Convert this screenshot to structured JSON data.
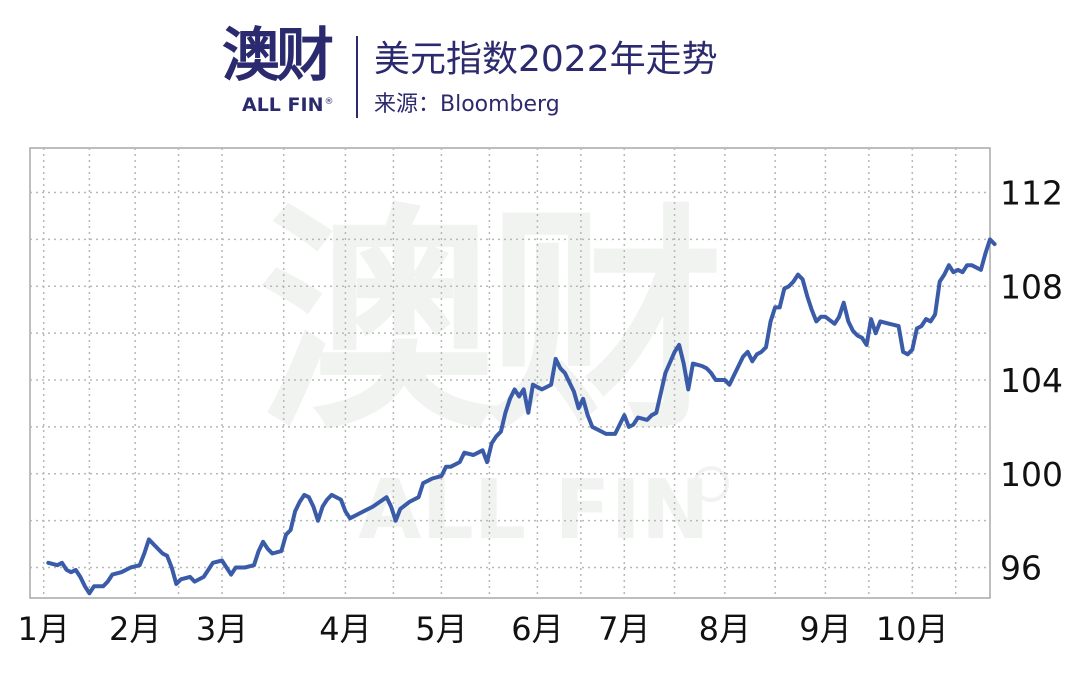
{
  "header": {
    "logo_cn": "澳财",
    "logo_en": "ALL FIN",
    "logo_reg": "®",
    "title": "美元指数2022年走势",
    "source": "来源：Bloomberg"
  },
  "watermark": {
    "cn": "澳财",
    "en": "ALL FIN"
  },
  "colors": {
    "line": "#3a5ba8",
    "brand": "#2b2a6e",
    "grid": "#b8b8b8"
  },
  "chart_data": {
    "type": "line",
    "title": "美元指数2022年走势",
    "xlabel": "",
    "ylabel": "",
    "grid": true,
    "y_axis_side": "right",
    "ylim": [
      94.7,
      113.9
    ],
    "yticks": [
      96,
      100,
      104,
      108,
      112
    ],
    "xticks": [
      {
        "label": "1月",
        "x": 1
      },
      {
        "label": "2月",
        "x": 21
      },
      {
        "label": "3月",
        "x": 40
      },
      {
        "label": "4月",
        "x": 67
      },
      {
        "label": "5月",
        "x": 88
      },
      {
        "label": "6月",
        "x": 109
      },
      {
        "label": "7月",
        "x": 128
      },
      {
        "label": "8月",
        "x": 150
      },
      {
        "label": "9月",
        "x": 172
      },
      {
        "label": "10月",
        "x": 191
      }
    ],
    "xlim": [
      -2,
      208
    ],
    "series": [
      {
        "values": [
          [
            2,
            96.2
          ],
          [
            4,
            96.1
          ],
          [
            5,
            96.2
          ],
          [
            6,
            95.9
          ],
          [
            7,
            95.8
          ],
          [
            8,
            95.9
          ],
          [
            9,
            95.6
          ],
          [
            10,
            95.2
          ],
          [
            11,
            94.9
          ],
          [
            12,
            95.2
          ],
          [
            14,
            95.2
          ],
          [
            15,
            95.4
          ],
          [
            16,
            95.7
          ],
          [
            18,
            95.8
          ],
          [
            20,
            96.0
          ],
          [
            22,
            96.1
          ],
          [
            23,
            96.6
          ],
          [
            24,
            97.2
          ],
          [
            25,
            97.0
          ],
          [
            27,
            96.6
          ],
          [
            28,
            96.5
          ],
          [
            29,
            96.0
          ],
          [
            30,
            95.3
          ],
          [
            31,
            95.5
          ],
          [
            33,
            95.6
          ],
          [
            34,
            95.4
          ],
          [
            36,
            95.6
          ],
          [
            38,
            96.2
          ],
          [
            40,
            96.3
          ],
          [
            42,
            95.7
          ],
          [
            43,
            96.0
          ],
          [
            45,
            96.0
          ],
          [
            47,
            96.1
          ],
          [
            48,
            96.7
          ],
          [
            49,
            97.1
          ],
          [
            50,
            96.8
          ],
          [
            51,
            96.6
          ],
          [
            53,
            96.7
          ],
          [
            54,
            97.4
          ],
          [
            55,
            97.6
          ],
          [
            56,
            98.4
          ],
          [
            57,
            98.8
          ],
          [
            58,
            99.1
          ],
          [
            59,
            99.0
          ],
          [
            60,
            98.6
          ],
          [
            61,
            98.0
          ],
          [
            62,
            98.6
          ],
          [
            63,
            98.9
          ],
          [
            64,
            99.1
          ],
          [
            66,
            98.9
          ],
          [
            67,
            98.4
          ],
          [
            68,
            98.1
          ],
          [
            70,
            98.3
          ],
          [
            73,
            98.6
          ],
          [
            76,
            99.0
          ],
          [
            77,
            98.6
          ],
          [
            78,
            98.0
          ],
          [
            79,
            98.5
          ],
          [
            81,
            98.8
          ],
          [
            83,
            99.0
          ],
          [
            84,
            99.6
          ],
          [
            86,
            99.8
          ],
          [
            88,
            99.9
          ],
          [
            89,
            100.3
          ],
          [
            90,
            100.3
          ],
          [
            92,
            100.5
          ],
          [
            93,
            100.9
          ],
          [
            95,
            100.8
          ],
          [
            96,
            100.9
          ],
          [
            97,
            101.0
          ],
          [
            98,
            100.5
          ],
          [
            99,
            101.3
          ],
          [
            100,
            101.6
          ],
          [
            101,
            101.8
          ],
          [
            102,
            102.6
          ],
          [
            103,
            103.2
          ],
          [
            104,
            103.6
          ],
          [
            105,
            103.3
          ],
          [
            106,
            103.6
          ],
          [
            107,
            102.6
          ],
          [
            108,
            103.8
          ],
          [
            109,
            103.7
          ],
          [
            110,
            103.6
          ],
          [
            112,
            103.8
          ],
          [
            113,
            104.9
          ],
          [
            114,
            104.5
          ],
          [
            115,
            104.3
          ],
          [
            116,
            103.9
          ],
          [
            117,
            103.5
          ],
          [
            118,
            102.8
          ],
          [
            119,
            103.2
          ],
          [
            120,
            102.5
          ],
          [
            121,
            102.0
          ],
          [
            122,
            101.9
          ],
          [
            124,
            101.7
          ],
          [
            126,
            101.7
          ],
          [
            127,
            102.1
          ],
          [
            128,
            102.5
          ],
          [
            129,
            102.0
          ],
          [
            130,
            102.1
          ],
          [
            131,
            102.4
          ],
          [
            133,
            102.3
          ],
          [
            134,
            102.5
          ],
          [
            135,
            102.6
          ],
          [
            137,
            104.3
          ],
          [
            139,
            105.2
          ],
          [
            140,
            105.5
          ],
          [
            141,
            104.7
          ],
          [
            142,
            103.6
          ],
          [
            143,
            104.7
          ],
          [
            145,
            104.6
          ],
          [
            146,
            104.5
          ],
          [
            147,
            104.3
          ],
          [
            148,
            104.0
          ],
          [
            150,
            104.0
          ],
          [
            151,
            103.8
          ],
          [
            152,
            104.2
          ],
          [
            154,
            105.0
          ],
          [
            155,
            105.2
          ],
          [
            156,
            104.8
          ],
          [
            157,
            105.1
          ],
          [
            158,
            105.2
          ],
          [
            159,
            105.4
          ],
          [
            160,
            106.5
          ],
          [
            161,
            107.1
          ],
          [
            162,
            107.1
          ],
          [
            163,
            107.9
          ],
          [
            164,
            108.0
          ],
          [
            165,
            108.2
          ],
          [
            166,
            108.5
          ],
          [
            167,
            108.3
          ],
          [
            168,
            107.6
          ],
          [
            169,
            107.0
          ],
          [
            170,
            106.5
          ],
          [
            171,
            106.7
          ],
          [
            172,
            106.7
          ],
          [
            174,
            106.4
          ],
          [
            175,
            106.7
          ],
          [
            176,
            107.3
          ],
          [
            177,
            106.5
          ],
          [
            178,
            106.1
          ],
          [
            179,
            105.9
          ],
          [
            180,
            105.8
          ],
          [
            181,
            105.5
          ],
          [
            182,
            106.6
          ],
          [
            183,
            106.0
          ],
          [
            184,
            106.5
          ],
          [
            186,
            106.4
          ],
          [
            188,
            106.3
          ],
          [
            189,
            105.2
          ],
          [
            190,
            105.1
          ],
          [
            191,
            105.3
          ],
          [
            192,
            106.2
          ],
          [
            193,
            106.3
          ],
          [
            194,
            106.6
          ],
          [
            195,
            106.5
          ],
          [
            196,
            106.8
          ],
          [
            197,
            108.2
          ],
          [
            198,
            108.5
          ],
          [
            199,
            108.9
          ],
          [
            200,
            108.6
          ],
          [
            201,
            108.7
          ],
          [
            202,
            108.6
          ],
          [
            203,
            108.9
          ],
          [
            204,
            108.9
          ],
          [
            206,
            108.7
          ],
          [
            207,
            109.4
          ],
          [
            208,
            110.0
          ],
          [
            209,
            109.8
          ]
        ]
      }
    ]
  }
}
